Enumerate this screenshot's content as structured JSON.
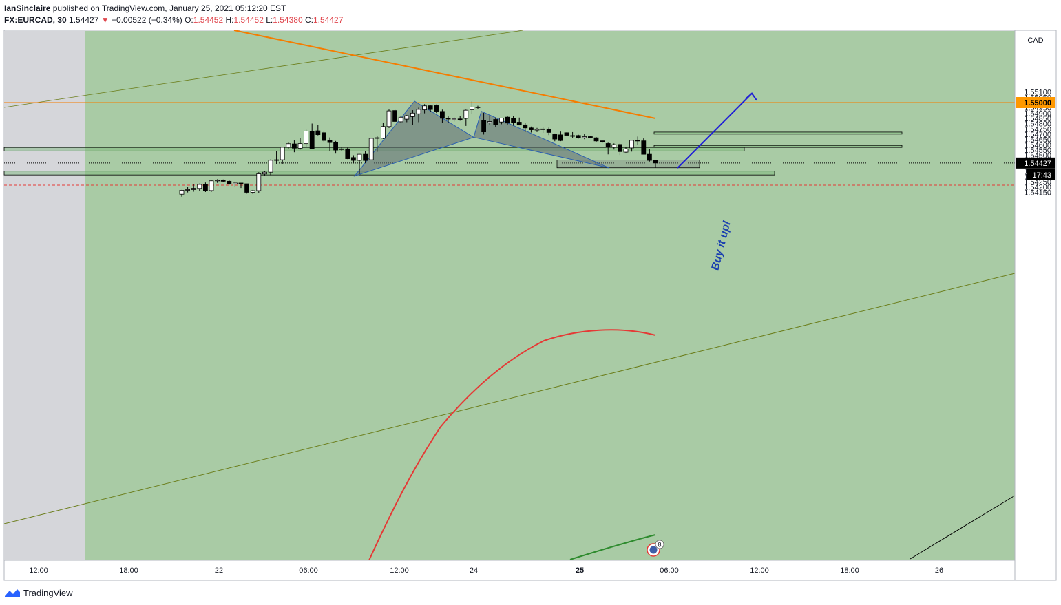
{
  "header": {
    "author": "IanSinclaire",
    "published_text": "published on TradingView.com, January 25, 2021 05:12:20 EST",
    "symbol": "FX:EURCAD, 30",
    "last": "1.54427",
    "change": "−0.00522 (−0.34%)",
    "o_label": "O:",
    "o_val": "1.54452",
    "h_label": "H:",
    "h_val": "1.54452",
    "l_label": "L:",
    "l_val": "1.54380",
    "c_label": "C:",
    "c_val": "1.54427"
  },
  "colors": {
    "up_candle": "#ffffff",
    "down_candle": "#000000",
    "zone_fill": "#a9cba5",
    "orange_line": "#f57c00",
    "red_ma": "#e53935",
    "green_ma": "#2e8b2e",
    "arrow_blue": "#1f1fd6",
    "pattern_fill": "#5e6b73",
    "trend_line": "#6b7d1a"
  },
  "chart_data": {
    "type": "candlestick",
    "currency_label": "CAD",
    "price_axis_ticks": [
      "1.55100",
      "1.55050",
      "1.55000",
      "1.54950",
      "1.54900",
      "1.54850",
      "1.54800",
      "1.54750",
      "1.54700",
      "1.54650",
      "1.54600",
      "1.54550",
      "1.54500",
      "1.54450",
      "1.54427",
      "1.54350",
      "1.54300",
      "1.54250",
      "1.54200",
      "1.54150"
    ],
    "price_tag_level": "1.55000",
    "current_price": "1.54427",
    "countdown": "17:43",
    "time_axis_ticks": [
      "12:00",
      "18:00",
      "22",
      "06:00",
      "12:00",
      "24",
      "25",
      "06:00",
      "12:00",
      "18:00",
      "26"
    ],
    "annotation": "Buy it up!",
    "event_badge": "8",
    "ylim": [
      1.5413,
      1.5513
    ],
    "candles": [
      {
        "o": 1.54131,
        "h": 1.54172,
        "l": 1.54108,
        "c": 1.54169
      },
      {
        "o": 1.54169,
        "h": 1.54204,
        "l": 1.54148,
        "c": 1.54175
      },
      {
        "o": 1.54175,
        "h": 1.54225,
        "l": 1.54155,
        "c": 1.54187
      },
      {
        "o": 1.54186,
        "h": 1.54232,
        "l": 1.54164,
        "c": 1.54224
      },
      {
        "o": 1.54222,
        "h": 1.54242,
        "l": 1.54152,
        "c": 1.54167
      },
      {
        "o": 1.54166,
        "h": 1.54261,
        "l": 1.54154,
        "c": 1.54258
      },
      {
        "o": 1.54258,
        "h": 1.54273,
        "l": 1.54239,
        "c": 1.54264
      },
      {
        "o": 1.54264,
        "h": 1.54271,
        "l": 1.54244,
        "c": 1.54254
      },
      {
        "o": 1.54254,
        "h": 1.54267,
        "l": 1.54221,
        "c": 1.54227
      },
      {
        "o": 1.54227,
        "h": 1.54251,
        "l": 1.54202,
        "c": 1.54237
      },
      {
        "o": 1.54237,
        "h": 1.54237,
        "l": 1.5419,
        "c": 1.5423
      },
      {
        "o": 1.5423,
        "h": 1.5423,
        "l": 1.54137,
        "c": 1.54149
      },
      {
        "o": 1.54149,
        "h": 1.54172,
        "l": 1.54133,
        "c": 1.54165
      },
      {
        "o": 1.54165,
        "h": 1.5434,
        "l": 1.54145,
        "c": 1.54325
      },
      {
        "o": 1.54323,
        "h": 1.5435,
        "l": 1.54305,
        "c": 1.5434
      },
      {
        "o": 1.5434,
        "h": 1.54461,
        "l": 1.54311,
        "c": 1.54453
      },
      {
        "o": 1.54452,
        "h": 1.5454,
        "l": 1.54413,
        "c": 1.54458
      },
      {
        "o": 1.54458,
        "h": 1.54576,
        "l": 1.54417,
        "c": 1.54576
      },
      {
        "o": 1.54576,
        "h": 1.54622,
        "l": 1.54557,
        "c": 1.5461
      },
      {
        "o": 1.54608,
        "h": 1.54641,
        "l": 1.54529,
        "c": 1.54568
      },
      {
        "o": 1.54567,
        "h": 1.54666,
        "l": 1.54555,
        "c": 1.54611
      },
      {
        "o": 1.54611,
        "h": 1.54743,
        "l": 1.54581,
        "c": 1.5473
      },
      {
        "o": 1.54728,
        "h": 1.54801,
        "l": 1.54559,
        "c": 1.54562
      },
      {
        "o": 1.54732,
        "h": 1.54786,
        "l": 1.54689,
        "c": 1.54696
      },
      {
        "o": 1.54714,
        "h": 1.54724,
        "l": 1.5463,
        "c": 1.54641
      },
      {
        "o": 1.54639,
        "h": 1.5467,
        "l": 1.54541,
        "c": 1.54621
      },
      {
        "o": 1.54621,
        "h": 1.54636,
        "l": 1.54516,
        "c": 1.5455
      },
      {
        "o": 1.54561,
        "h": 1.54576,
        "l": 1.5454,
        "c": 1.54561
      },
      {
        "o": 1.54561,
        "h": 1.54571,
        "l": 1.54464,
        "c": 1.54468
      },
      {
        "o": 1.54479,
        "h": 1.54501,
        "l": 1.54423,
        "c": 1.54452
      },
      {
        "o": 1.54452,
        "h": 1.54512,
        "l": 1.54322,
        "c": 1.5451
      },
      {
        "o": 1.5451,
        "h": 1.54537,
        "l": 1.54425,
        "c": 1.54451
      },
      {
        "o": 1.54458,
        "h": 1.54667,
        "l": 1.54453,
        "c": 1.54661
      },
      {
        "o": 1.54663,
        "h": 1.54683,
        "l": 1.54533,
        "c": 1.54667
      },
      {
        "o": 1.54662,
        "h": 1.54811,
        "l": 1.54655,
        "c": 1.54773
      },
      {
        "o": 1.54773,
        "h": 1.54934,
        "l": 1.54759,
        "c": 1.54921
      },
      {
        "o": 1.54924,
        "h": 1.54932,
        "l": 1.54825,
        "c": 1.54821
      },
      {
        "o": 1.54818,
        "h": 1.54871,
        "l": 1.54811,
        "c": 1.54861
      },
      {
        "o": 1.54843,
        "h": 1.54882,
        "l": 1.54814,
        "c": 1.54875
      },
      {
        "o": 1.54867,
        "h": 1.54928,
        "l": 1.5479,
        "c": 1.549
      },
      {
        "o": 1.54894,
        "h": 1.54952,
        "l": 1.54814,
        "c": 1.54935
      },
      {
        "o": 1.54931,
        "h": 1.54985,
        "l": 1.54898,
        "c": 1.54969
      },
      {
        "o": 1.5497,
        "h": 1.54973,
        "l": 1.54915,
        "c": 1.54934
      },
      {
        "o": 1.54971,
        "h": 1.54982,
        "l": 1.54901,
        "c": 1.54918
      },
      {
        "o": 1.54916,
        "h": 1.54933,
        "l": 1.54809,
        "c": 1.54851
      },
      {
        "o": 1.5485,
        "h": 1.54869,
        "l": 1.54811,
        "c": 1.54844
      },
      {
        "o": 1.54838,
        "h": 1.5486,
        "l": 1.54821,
        "c": 1.54848
      },
      {
        "o": 1.54845,
        "h": 1.54876,
        "l": 1.54828,
        "c": 1.54843
      },
      {
        "o": 1.5485,
        "h": 1.54933,
        "l": 1.54779,
        "c": 1.54927
      },
      {
        "o": 1.54931,
        "h": 1.55011,
        "l": 1.54895,
        "c": 1.54957
      },
      {
        "o": 1.54957,
        "h": 1.5497,
        "l": 1.5494,
        "c": 1.54958
      },
      {
        "o": 1.5483,
        "h": 1.54902,
        "l": 1.54697,
        "c": 1.54722
      },
      {
        "o": 1.5481,
        "h": 1.5488,
        "l": 1.54792,
        "c": 1.5482
      },
      {
        "o": 1.5484,
        "h": 1.54859,
        "l": 1.54767,
        "c": 1.54794
      },
      {
        "o": 1.54816,
        "h": 1.54855,
        "l": 1.54795,
        "c": 1.54854
      },
      {
        "o": 1.54862,
        "h": 1.54876,
        "l": 1.54788,
        "c": 1.54806
      },
      {
        "o": 1.54849,
        "h": 1.54871,
        "l": 1.54782,
        "c": 1.54809
      },
      {
        "o": 1.54814,
        "h": 1.54858,
        "l": 1.54786,
        "c": 1.54787
      },
      {
        "o": 1.54789,
        "h": 1.54809,
        "l": 1.54721,
        "c": 1.5476
      },
      {
        "o": 1.5476,
        "h": 1.54773,
        "l": 1.54716,
        "c": 1.54742
      },
      {
        "o": 1.54739,
        "h": 1.5476,
        "l": 1.5472,
        "c": 1.54747
      },
      {
        "o": 1.5475,
        "h": 1.54766,
        "l": 1.54713,
        "c": 1.54746
      },
      {
        "o": 1.54743,
        "h": 1.54763,
        "l": 1.54692,
        "c": 1.54717
      },
      {
        "o": 1.54697,
        "h": 1.54707,
        "l": 1.54633,
        "c": 1.54654
      },
      {
        "o": 1.54694,
        "h": 1.54725,
        "l": 1.54634,
        "c": 1.5464
      },
      {
        "o": 1.54714,
        "h": 1.54717,
        "l": 1.54691,
        "c": 1.5469
      },
      {
        "o": 1.54687,
        "h": 1.5472,
        "l": 1.54663,
        "c": 1.54687
      },
      {
        "o": 1.54688,
        "h": 1.54695,
        "l": 1.54659,
        "c": 1.54667
      },
      {
        "o": 1.54667,
        "h": 1.547,
        "l": 1.54653,
        "c": 1.54677
      },
      {
        "o": 1.54677,
        "h": 1.54685,
        "l": 1.54668,
        "c": 1.5467
      },
      {
        "o": 1.54666,
        "h": 1.54673,
        "l": 1.54624,
        "c": 1.54636
      },
      {
        "o": 1.54637,
        "h": 1.54641,
        "l": 1.54615,
        "c": 1.54626
      },
      {
        "o": 1.54612,
        "h": 1.5462,
        "l": 1.54509,
        "c": 1.54579
      },
      {
        "o": 1.54579,
        "h": 1.54613,
        "l": 1.54555,
        "c": 1.54601
      },
      {
        "o": 1.54603,
        "h": 1.54612,
        "l": 1.54503,
        "c": 1.54535
      },
      {
        "o": 1.5453,
        "h": 1.54574,
        "l": 1.54525,
        "c": 1.54561
      },
      {
        "o": 1.5457,
        "h": 1.54644,
        "l": 1.54535,
        "c": 1.54642
      },
      {
        "o": 1.54642,
        "h": 1.54678,
        "l": 1.54602,
        "c": 1.54637
      },
      {
        "o": 1.54637,
        "h": 1.5466,
        "l": 1.54512,
        "c": 1.5451
      },
      {
        "o": 1.5451,
        "h": 1.54562,
        "l": 1.54441,
        "c": 1.54452
      },
      {
        "o": 1.54452,
        "h": 1.54452,
        "l": 1.5438,
        "c": 1.54427
      }
    ],
    "overlays": {
      "horizontal_levels": [
        1.55,
        1.54427,
        1.54217
      ],
      "zones": [
        {
          "top": 1.54575,
          "bottom": 1.54541
        },
        {
          "top": 1.5435,
          "bottom": 1.54314
        },
        {
          "top": 1.5472,
          "bottom": 1.54701
        },
        {
          "top": 1.54594,
          "bottom": 1.54575
        },
        {
          "top": 1.54575,
          "bottom": 1.54541
        },
        {
          "top": 1.54455,
          "bottom": 1.54382
        }
      ],
      "pattern_points": [
        1.54304,
        1.55013,
        1.54671,
        1.54917,
        1.5438
      ],
      "arrow": {
        "from": 1.5438,
        "to": 1.55087
      }
    }
  }
}
